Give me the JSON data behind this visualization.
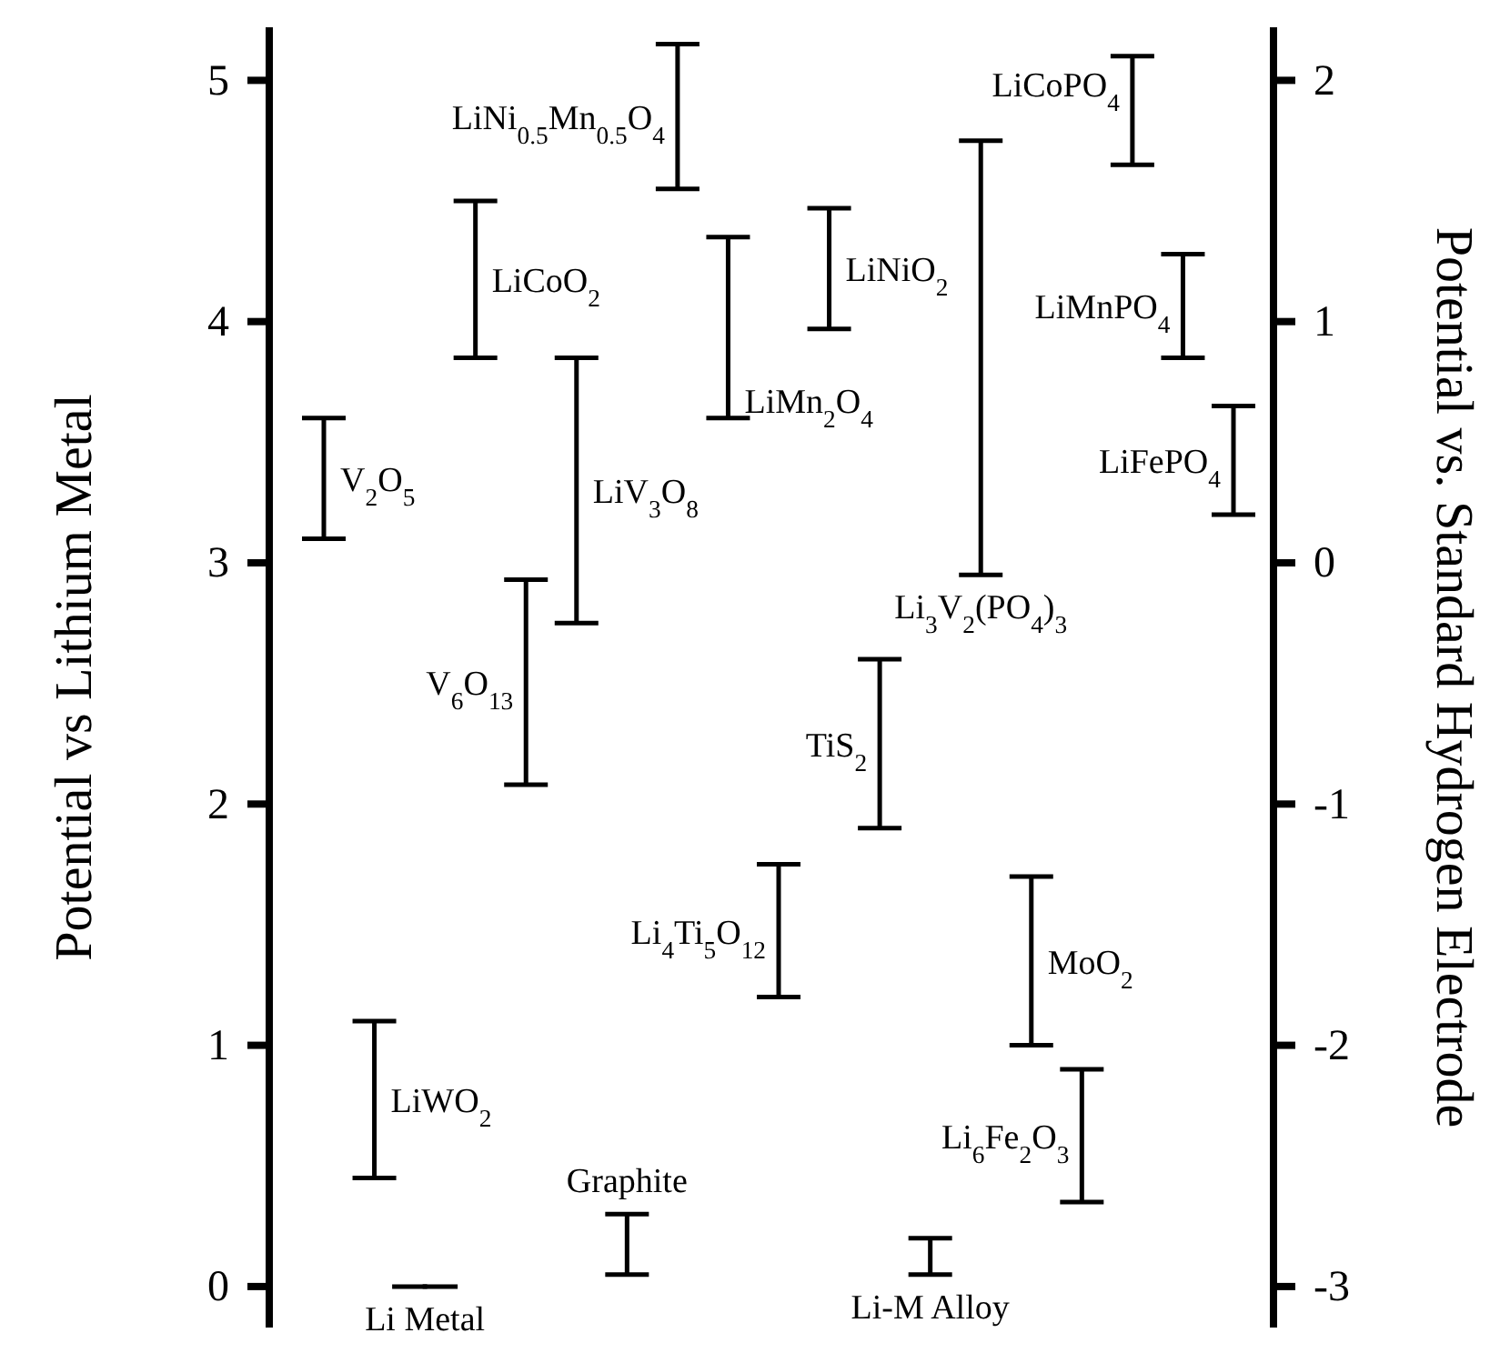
{
  "chart_data": {
    "type": "bar",
    "ylabel": "Potential vs Lithium Metal",
    "y2label": "Potential vs. Standard Hydrogen Electrode",
    "categories": [
      null,
      null,
      null,
      null,
      null,
      null,
      null,
      null,
      null,
      null,
      null,
      null,
      null,
      null,
      null,
      null,
      null,
      null,
      null
    ],
    "ylim": [
      -0.17,
      5.22
    ],
    "yticks": [
      0,
      1,
      2,
      3,
      4,
      5
    ],
    "y2lim": [
      -3.17,
      2.22
    ],
    "y2ticks": [
      -3,
      -2,
      -1,
      0,
      1,
      2
    ],
    "series": [
      {
        "color": "#000000",
        "base": [
          3.1,
          0.45,
          0,
          3.85,
          2.08,
          2.75,
          0.05,
          4.55,
          3.6,
          1.2,
          3.97,
          1.9,
          0.05,
          2.95,
          1.0,
          0.35,
          4.65,
          3.85,
          3.2
        ],
        "values": [
          0.5,
          0.65,
          0,
          0.65,
          0.85,
          1.1,
          0.25,
          0.6,
          0.75,
          0.55,
          0.5,
          0.7,
          0.15,
          1.8,
          0.7,
          0.55,
          0.45,
          0.43,
          0.45
        ]
      }
    ],
    "annotations": [
      "V$_{2}$O$_{5}$",
      "LiWO$_{2}$",
      "Li Metal",
      "LiCoO$_{2}$",
      "V$_{6}$O$_{13}$",
      "LiV$_{3}$O$_{8}$",
      "Graphite",
      "LiNi$_{0.5}$Mn$_{0.5}$O$_{4}$",
      "LiMn$_{2}$O$_{4}$",
      "Li$_{4}$Ti$_{5}$O$_{12}$",
      "LiNiO$_{2}$",
      "TiS$_{2}$",
      "Li-M Alloy",
      "Li$_{3}$V$_{2}$(PO$_{4}$)$_{3}$",
      "MoO$_{2}$",
      "Li$_{6}$Fe$_{2}$O$_{3}$",
      "LiCoPO$_{4}$",
      "LiMnPO$_{4}$",
      "LiFePO$_{4}$"
    ]
  }
}
